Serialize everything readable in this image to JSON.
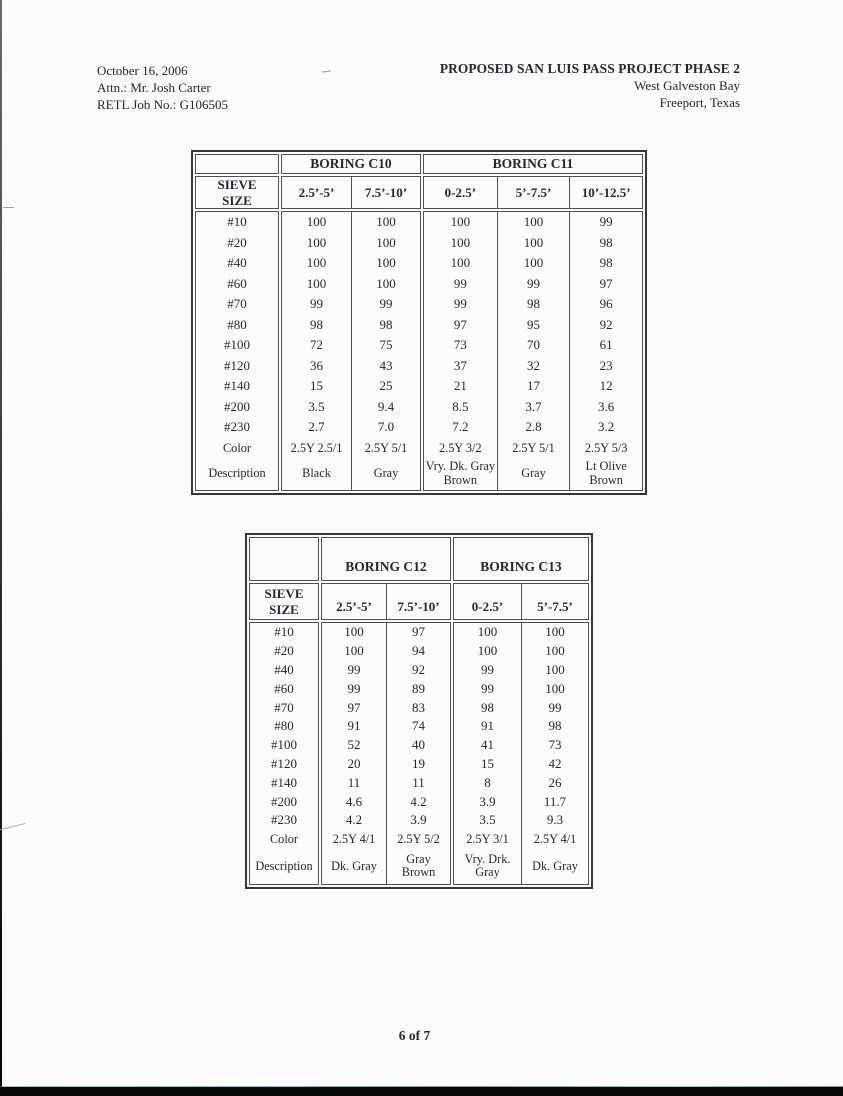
{
  "letterhead": {
    "date": "October 16, 2006",
    "attention": "Attn.: Mr. Josh Carter",
    "job_number": "RETL Job No.: G106505",
    "project_title": "PROPOSED SAN LUIS PASS PROJECT PHASE 2",
    "location": "West Galveston Bay",
    "city": "Freeport, Texas"
  },
  "tables": [
    {
      "row_header": "SIEVE\nSIZE",
      "groups": [
        {
          "title": "BORING C10",
          "columns": [
            "2.5’-5’",
            "7.5’-10’"
          ]
        },
        {
          "title": "BORING C11",
          "columns": [
            "0-2.5’",
            "5’-7.5’",
            "10’-12.5’"
          ]
        }
      ],
      "rows": [
        {
          "label": "#10",
          "values": [
            "100",
            "100",
            "100",
            "100",
            "99"
          ]
        },
        {
          "label": "#20",
          "values": [
            "100",
            "100",
            "100",
            "100",
            "98"
          ]
        },
        {
          "label": "#40",
          "values": [
            "100",
            "100",
            "100",
            "100",
            "98"
          ]
        },
        {
          "label": "#60",
          "values": [
            "100",
            "100",
            "99",
            "99",
            "97"
          ]
        },
        {
          "label": "#70",
          "values": [
            "99",
            "99",
            "99",
            "98",
            "96"
          ]
        },
        {
          "label": "#80",
          "values": [
            "98",
            "98",
            "97",
            "95",
            "92"
          ]
        },
        {
          "label": "#100",
          "values": [
            "72",
            "75",
            "73",
            "70",
            "61"
          ]
        },
        {
          "label": "#120",
          "values": [
            "36",
            "43",
            "37",
            "32",
            "23"
          ]
        },
        {
          "label": "#140",
          "values": [
            "15",
            "25",
            "21",
            "17",
            "12"
          ]
        },
        {
          "label": "#200",
          "values": [
            "3.5",
            "9.4",
            "8.5",
            "3.7",
            "3.6"
          ]
        },
        {
          "label": "#230",
          "values": [
            "2.7",
            "7.0",
            "7.2",
            "2.8",
            "3.2"
          ]
        },
        {
          "label": "Color",
          "values": [
            "2.5Y 2.5/1",
            "2.5Y 5/1",
            "2.5Y 3/2",
            "2.5Y 5/1",
            "2.5Y 5/3"
          ]
        },
        {
          "label": "Description",
          "values": [
            "Black",
            "Gray",
            "Vry. Dk. Gray Brown",
            "Gray",
            "Lt Olive Brown"
          ]
        }
      ]
    },
    {
      "row_header": "SIEVE\nSIZE",
      "groups": [
        {
          "title": "BORING C12",
          "columns": [
            "2.5’-5’",
            "7.5’-10’"
          ]
        },
        {
          "title": "BORING C13",
          "columns": [
            "0-2.5’",
            "5’-7.5’"
          ]
        }
      ],
      "rows": [
        {
          "label": "#10",
          "values": [
            "100",
            "97",
            "100",
            "100"
          ]
        },
        {
          "label": "#20",
          "values": [
            "100",
            "94",
            "100",
            "100"
          ]
        },
        {
          "label": "#40",
          "values": [
            "99",
            "92",
            "99",
            "100"
          ]
        },
        {
          "label": "#60",
          "values": [
            "99",
            "89",
            "99",
            "100"
          ]
        },
        {
          "label": "#70",
          "values": [
            "97",
            "83",
            "98",
            "99"
          ]
        },
        {
          "label": "#80",
          "values": [
            "91",
            "74",
            "91",
            "98"
          ]
        },
        {
          "label": "#100",
          "values": [
            "52",
            "40",
            "41",
            "73"
          ]
        },
        {
          "label": "#120",
          "values": [
            "20",
            "19",
            "15",
            "42"
          ]
        },
        {
          "label": "#140",
          "values": [
            "11",
            "11",
            "8",
            "26"
          ]
        },
        {
          "label": "#200",
          "values": [
            "4.6",
            "4.2",
            "3.9",
            "11.7"
          ]
        },
        {
          "label": "#230",
          "values": [
            "4.2",
            "3.9",
            "3.5",
            "9.3"
          ]
        },
        {
          "label": "Color",
          "values": [
            "2.5Y 4/1",
            "2.5Y 5/2",
            "2.5Y 3/1",
            "2.5Y 4/1"
          ]
        },
        {
          "label": "Description",
          "values": [
            "Dk. Gray",
            "Gray Brown",
            "Vry. Drk. Gray",
            "Dk. Gray"
          ]
        }
      ]
    }
  ],
  "footer": {
    "page_number": "6 of 7"
  }
}
